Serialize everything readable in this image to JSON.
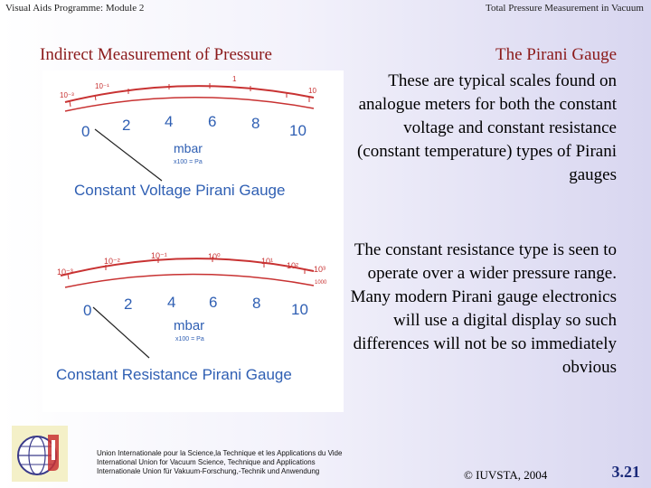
{
  "header": {
    "left": "Visual Aids Programme: Module 2",
    "right": "Total Pressure Measurement in Vacuum"
  },
  "slide": {
    "title_left": "Indirect Measurement of Pressure",
    "title_right": "The Pirani Gauge",
    "para1": "These are typical scales found on analogue meters for both the constant voltage and constant resistance (constant temperature) types of Pirani gauges",
    "para2": "The constant resistance type is seen to operate over a wider pressure range. Many modern Pirani gauge electronics will use a digital display so such differences will not be so immediately obvious"
  },
  "gauge1": {
    "unit": "mbar",
    "conversion": "x100 = Pa",
    "caption": "Constant Voltage Pirani Gauge",
    "decades": [
      "10⁻³",
      "10⁻¹",
      "1",
      "10"
    ],
    "linear_labels": [
      "0",
      "2",
      "4",
      "6",
      "8",
      "10"
    ],
    "colors": {
      "scale_red": "#c83232",
      "caption_blue": "#2f5fb3",
      "needle": "#222222"
    }
  },
  "gauge2": {
    "unit": "mbar",
    "conversion": "x100 = Pa",
    "caption": "Constant Resistance Pirani Gauge",
    "decades": [
      "10⁻³",
      "10⁻²",
      "10⁻¹",
      "10⁰",
      "10¹",
      "10²",
      "10³"
    ],
    "end_label": "1000",
    "linear_labels": [
      "0",
      "2",
      "4",
      "6",
      "8",
      "10"
    ],
    "colors": {
      "scale_red": "#c83232",
      "caption_blue": "#2f5fb3",
      "needle": "#222222"
    }
  },
  "footer": {
    "union_line1": "Union Internationale pour la Science,la Technique et les Applications du Vide",
    "union_line2": "International Union for Vacuum Science, Technique and Applications",
    "union_line3": "Internationale Union für Vakuum-Forschung,-Technik und Anwendung",
    "copyright": "© IUVSTA, 2004",
    "page": "3.21"
  }
}
